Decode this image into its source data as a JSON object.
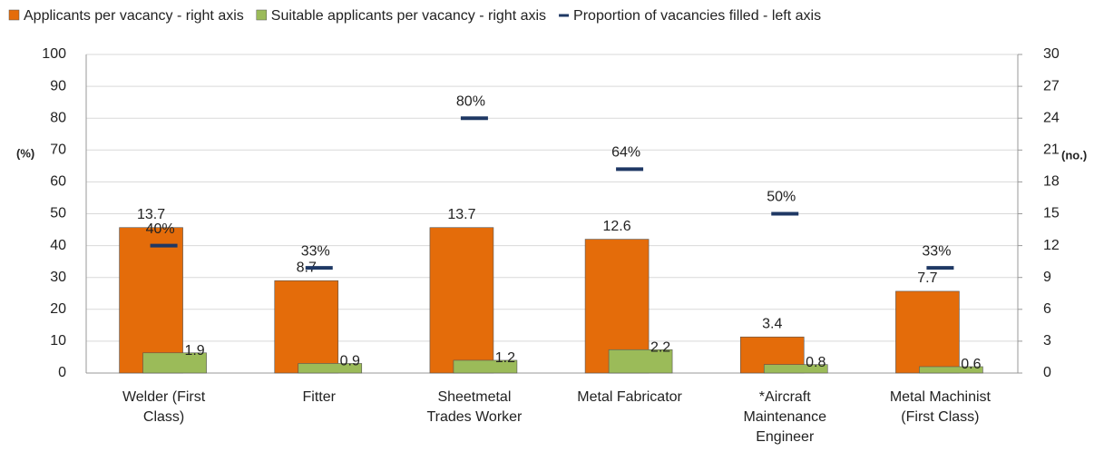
{
  "chart_data": {
    "type": "combo",
    "categories": [
      "Welder (First Class)",
      "Fitter",
      "Sheetmetal Trades Worker",
      "Metal Fabricator",
      "*Aircraft Maintenance Engineer",
      "Metal Machinist (First Class)"
    ],
    "series": [
      {
        "name": "Applicants per vacancy - right axis",
        "color": "#e46c0a",
        "axis": "y2",
        "kind": "bar",
        "values": [
          13.7,
          8.7,
          13.7,
          12.6,
          3.4,
          7.7
        ]
      },
      {
        "name": "Suitable applicants per vacancy - right axis",
        "color": "#9bbb59",
        "axis": "y2",
        "kind": "bar",
        "values": [
          1.9,
          0.9,
          1.2,
          2.2,
          0.8,
          0.6
        ]
      },
      {
        "name": "Proportion of vacancies filled - left axis",
        "color": "#1f3864",
        "axis": "y",
        "kind": "marker",
        "values": [
          40,
          33,
          80,
          64,
          50,
          33
        ],
        "value_labels": [
          "40%",
          "33%",
          "80%",
          "64%",
          "50%",
          "33%"
        ]
      }
    ],
    "ylabel": "(%)",
    "y2label": "(no.)",
    "ylim": [
      0,
      100
    ],
    "yticks": [
      0,
      10,
      20,
      30,
      40,
      50,
      60,
      70,
      80,
      90,
      100
    ],
    "y2lim": [
      0,
      30
    ],
    "y2ticks": [
      0,
      3,
      6,
      9,
      12,
      15,
      18,
      21,
      24,
      27,
      30
    ],
    "grid": true,
    "legend": "top"
  }
}
